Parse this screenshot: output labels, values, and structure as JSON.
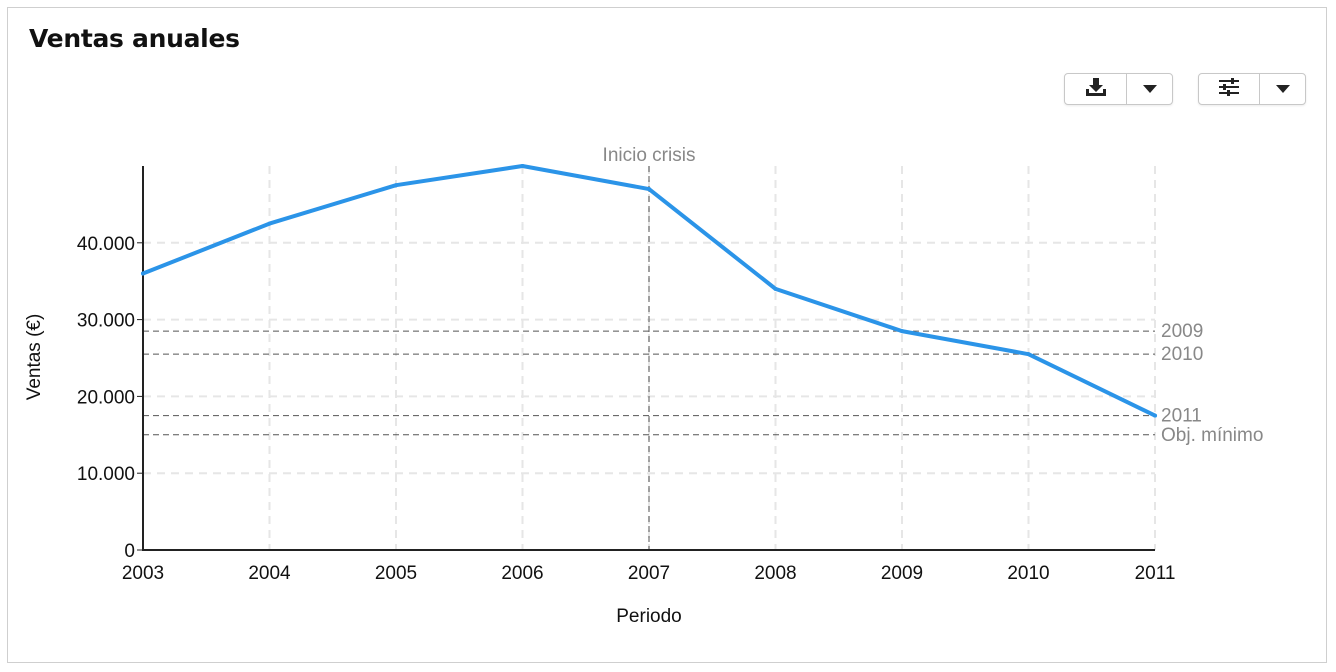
{
  "header": {
    "title": "Ventas anuales"
  },
  "toolbar": {
    "download_icon": "download-icon",
    "settings_icon": "sliders-icon",
    "dropdown_icon": "caret-down-icon"
  },
  "chart_data": {
    "type": "line",
    "xlabel": "Periodo",
    "ylabel": "Ventas (€)",
    "x": [
      "2003",
      "2004",
      "2005",
      "2006",
      "2007",
      "2008",
      "2009",
      "2010",
      "2011"
    ],
    "series": [
      {
        "values": [
          36000,
          42500,
          47500,
          50000,
          47000,
          34000,
          28500,
          25500,
          17500
        ],
        "color": "#2b94e8"
      }
    ],
    "ylim": [
      0,
      50000
    ],
    "y_ticks": [
      0,
      10000,
      20000,
      30000,
      40000
    ],
    "y_tick_labels": [
      "0",
      "10.000",
      "20.000",
      "30.000",
      "40.000"
    ],
    "grid": true,
    "vertical_marker": {
      "x": "2007",
      "label": "Inicio crisis"
    },
    "reference_lines": [
      {
        "y": 28500,
        "label": "2009"
      },
      {
        "y": 25500,
        "label": "2010"
      },
      {
        "y": 17500,
        "label": "2011"
      },
      {
        "y": 15000,
        "label": "Obj. mínimo"
      }
    ]
  }
}
